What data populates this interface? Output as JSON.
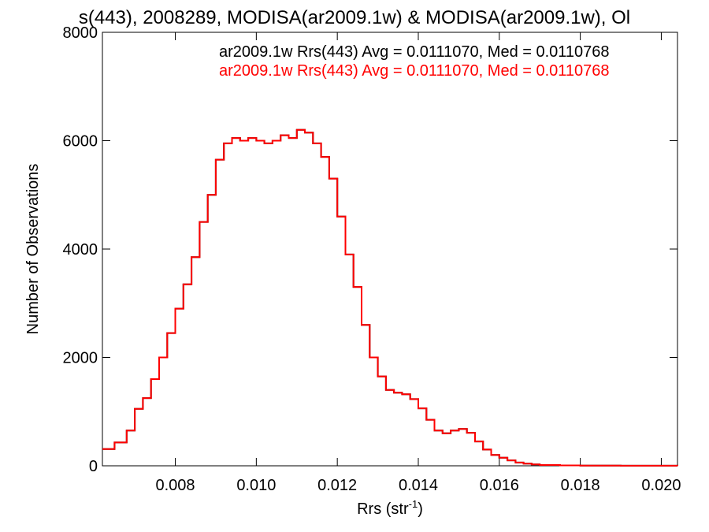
{
  "chart_data": {
    "type": "line",
    "title": "s(443), 2008289, MODISA(ar2009.1w) & MODISA(ar2009.1w), Ol",
    "xlabel": "Rrs (str",
    "xlabel_sup": "-1",
    "xlabel_close": ")",
    "ylabel": "Number of Observations",
    "xlim": [
      0.0062,
      0.0204
    ],
    "ylim": [
      0,
      8000
    ],
    "xticks": [
      0.008,
      0.01,
      0.012,
      0.014,
      0.016,
      0.018,
      0.02
    ],
    "xtick_labels": [
      "0.008",
      "0.010",
      "0.012",
      "0.014",
      "0.016",
      "0.018",
      "0.020"
    ],
    "yticks": [
      0,
      2000,
      4000,
      6000,
      8000
    ],
    "ytick_labels": [
      "0",
      "2000",
      "4000",
      "6000",
      "8000"
    ],
    "grid": false,
    "series": [
      {
        "name": "ar2009.1w Rrs(443) Avg = 0.0111070, Med = 0.0110768",
        "color": "#000000",
        "points": [
          [
            0.0062,
            310
          ],
          [
            0.0065,
            430
          ],
          [
            0.0068,
            650
          ],
          [
            0.007,
            1050
          ],
          [
            0.0072,
            1250
          ],
          [
            0.0074,
            1600
          ],
          [
            0.0076,
            2000
          ],
          [
            0.0078,
            2450
          ],
          [
            0.008,
            2900
          ],
          [
            0.0082,
            3350
          ],
          [
            0.0084,
            3850
          ],
          [
            0.0086,
            4500
          ],
          [
            0.0088,
            5000
          ],
          [
            0.009,
            5650
          ],
          [
            0.0092,
            5950
          ],
          [
            0.0094,
            6050
          ],
          [
            0.0096,
            6000
          ],
          [
            0.0098,
            6050
          ],
          [
            0.01,
            6000
          ],
          [
            0.0102,
            5950
          ],
          [
            0.0104,
            6000
          ],
          [
            0.0106,
            6100
          ],
          [
            0.0108,
            6050
          ],
          [
            0.011,
            6200
          ],
          [
            0.0112,
            6150
          ],
          [
            0.0114,
            5950
          ],
          [
            0.0116,
            5700
          ],
          [
            0.0118,
            5300
          ],
          [
            0.012,
            4600
          ],
          [
            0.0122,
            3900
          ],
          [
            0.0124,
            3300
          ],
          [
            0.0126,
            2600
          ],
          [
            0.0128,
            2000
          ],
          [
            0.013,
            1650
          ],
          [
            0.0132,
            1400
          ],
          [
            0.0134,
            1350
          ],
          [
            0.0136,
            1320
          ],
          [
            0.0138,
            1230
          ],
          [
            0.014,
            1060
          ],
          [
            0.0142,
            850
          ],
          [
            0.0144,
            650
          ],
          [
            0.0146,
            600
          ],
          [
            0.0148,
            650
          ],
          [
            0.015,
            680
          ],
          [
            0.0152,
            610
          ],
          [
            0.0154,
            450
          ],
          [
            0.0156,
            300
          ],
          [
            0.0158,
            200
          ],
          [
            0.016,
            150
          ],
          [
            0.0162,
            100
          ],
          [
            0.0164,
            60
          ],
          [
            0.0166,
            40
          ],
          [
            0.0168,
            25
          ],
          [
            0.017,
            15
          ],
          [
            0.0175,
            8
          ],
          [
            0.018,
            5
          ],
          [
            0.019,
            2
          ],
          [
            0.0204,
            0
          ]
        ]
      },
      {
        "name": "ar2009.1w Rrs(443) Avg = 0.0111070, Med = 0.0110768",
        "color": "#ff0000",
        "points": [
          [
            0.0062,
            310
          ],
          [
            0.0065,
            430
          ],
          [
            0.0068,
            650
          ],
          [
            0.007,
            1050
          ],
          [
            0.0072,
            1250
          ],
          [
            0.0074,
            1600
          ],
          [
            0.0076,
            2000
          ],
          [
            0.0078,
            2450
          ],
          [
            0.008,
            2900
          ],
          [
            0.0082,
            3350
          ],
          [
            0.0084,
            3850
          ],
          [
            0.0086,
            4500
          ],
          [
            0.0088,
            5000
          ],
          [
            0.009,
            5650
          ],
          [
            0.0092,
            5950
          ],
          [
            0.0094,
            6050
          ],
          [
            0.0096,
            6000
          ],
          [
            0.0098,
            6050
          ],
          [
            0.01,
            6000
          ],
          [
            0.0102,
            5950
          ],
          [
            0.0104,
            6000
          ],
          [
            0.0106,
            6100
          ],
          [
            0.0108,
            6050
          ],
          [
            0.011,
            6200
          ],
          [
            0.0112,
            6150
          ],
          [
            0.0114,
            5950
          ],
          [
            0.0116,
            5700
          ],
          [
            0.0118,
            5300
          ],
          [
            0.012,
            4600
          ],
          [
            0.0122,
            3900
          ],
          [
            0.0124,
            3300
          ],
          [
            0.0126,
            2600
          ],
          [
            0.0128,
            2000
          ],
          [
            0.013,
            1650
          ],
          [
            0.0132,
            1400
          ],
          [
            0.0134,
            1350
          ],
          [
            0.0136,
            1320
          ],
          [
            0.0138,
            1230
          ],
          [
            0.014,
            1060
          ],
          [
            0.0142,
            850
          ],
          [
            0.0144,
            650
          ],
          [
            0.0146,
            600
          ],
          [
            0.0148,
            650
          ],
          [
            0.015,
            680
          ],
          [
            0.0152,
            610
          ],
          [
            0.0154,
            450
          ],
          [
            0.0156,
            300
          ],
          [
            0.0158,
            200
          ],
          [
            0.016,
            150
          ],
          [
            0.0162,
            100
          ],
          [
            0.0164,
            60
          ],
          [
            0.0166,
            40
          ],
          [
            0.0168,
            25
          ],
          [
            0.017,
            15
          ],
          [
            0.0175,
            8
          ],
          [
            0.018,
            5
          ],
          [
            0.019,
            2
          ],
          [
            0.0204,
            0
          ]
        ]
      }
    ]
  }
}
